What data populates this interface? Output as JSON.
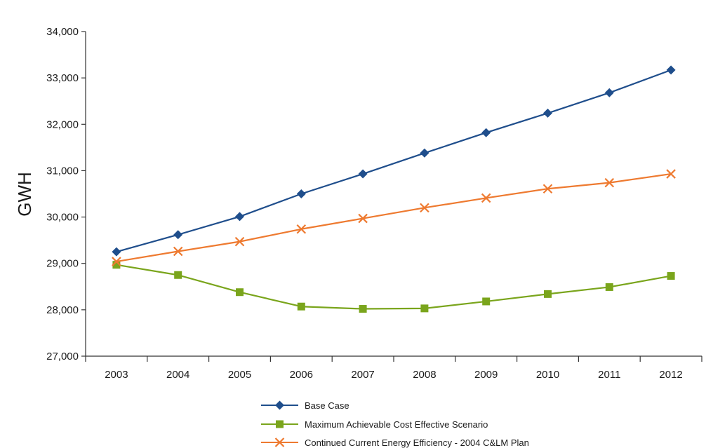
{
  "chart_data": {
    "type": "line",
    "ylabel": "GWH",
    "xlabel": "",
    "title": "",
    "x": [
      "2003",
      "2004",
      "2005",
      "2006",
      "2007",
      "2008",
      "2009",
      "2010",
      "2011",
      "2012"
    ],
    "ylim": [
      27000,
      34000
    ],
    "yticks": [
      27000,
      28000,
      29000,
      30000,
      31000,
      32000,
      33000,
      34000
    ],
    "ytick_labels": [
      "27,000",
      "28,000",
      "29,000",
      "30,000",
      "31,000",
      "32,000",
      "33,000",
      "34,000"
    ],
    "grid": false,
    "legend_position": "bottom",
    "series": [
      {
        "name": "Base Case",
        "color": "#1f4e8c",
        "marker": "diamond",
        "values": [
          29250,
          29620,
          30010,
          30500,
          30930,
          31380,
          31820,
          32240,
          32680,
          33170
        ]
      },
      {
        "name": "Maximum Achievable Cost Effective Scenario",
        "color": "#7aa51c",
        "marker": "square",
        "values": [
          28970,
          28750,
          28380,
          28070,
          28020,
          28030,
          28180,
          28340,
          28490,
          28730
        ]
      },
      {
        "name": "Continued Current Energy Efficiency - 2004 C&LM Plan",
        "color": "#ee7a30",
        "marker": "x",
        "values": [
          29040,
          29260,
          29470,
          29740,
          29970,
          30200,
          30410,
          30610,
          30740,
          30930
        ]
      }
    ]
  }
}
